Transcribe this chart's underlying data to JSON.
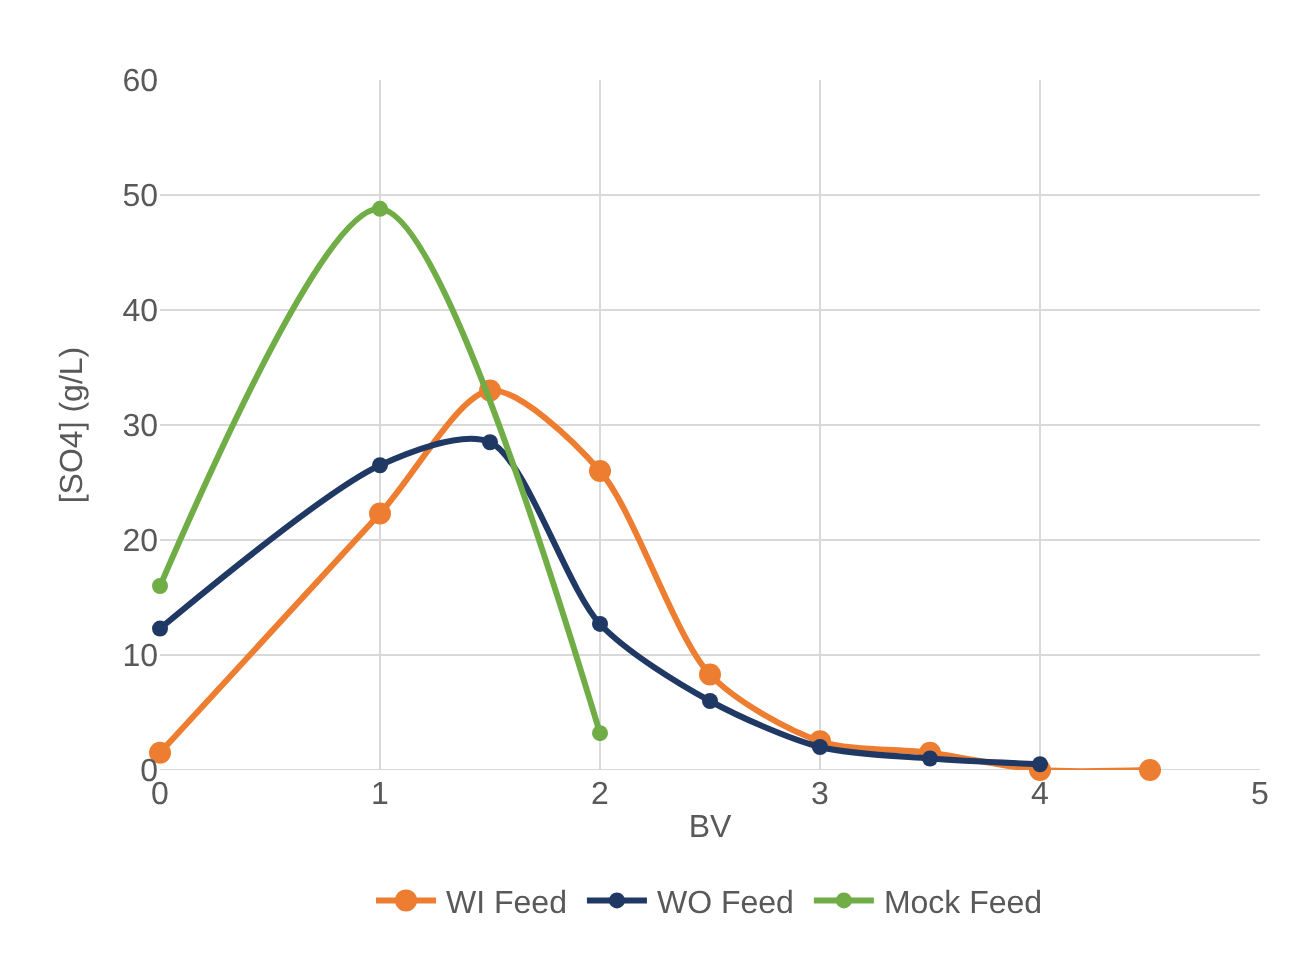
{
  "chart_data": {
    "type": "line",
    "xlabel": "BV",
    "ylabel": "[SO4] (g/L)",
    "xlim": [
      0,
      5
    ],
    "xticks": [
      0,
      1,
      2,
      3,
      4,
      5
    ],
    "ylim": [
      0,
      60
    ],
    "yticks": [
      0,
      10,
      20,
      30,
      40,
      50,
      60
    ],
    "grid": true,
    "legend": "bottom",
    "marker": "circle",
    "line_style": "solid",
    "series": [
      {
        "name": "WI Feed",
        "color": "#ed7d31",
        "x": [
          0,
          1,
          1.5,
          2,
          2.5,
          3,
          3.5,
          4,
          4.5
        ],
        "values": [
          1.5,
          22.3,
          33,
          26,
          8.3,
          2.5,
          1.5,
          0,
          0
        ]
      },
      {
        "name": "WO Feed",
        "color": "#1f3864",
        "x": [
          0,
          1,
          1.5,
          2,
          2.5,
          3,
          3.5,
          4
        ],
        "values": [
          12.3,
          26.5,
          28.5,
          12.7,
          6,
          2,
          1,
          0.5
        ]
      },
      {
        "name": "Mock Feed",
        "color": "#70ad47",
        "x": [
          0,
          1,
          2
        ],
        "values": [
          16,
          48.8,
          3.2
        ]
      }
    ]
  }
}
